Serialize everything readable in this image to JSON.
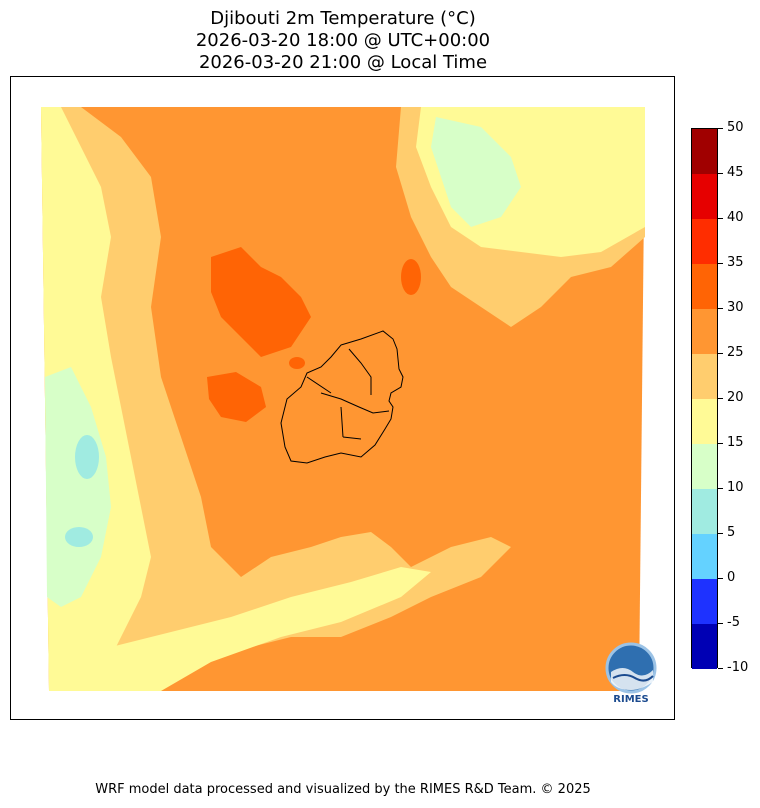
{
  "title": {
    "line1": "Djibouti 2m Temperature (°C)",
    "line2": "2026-03-20 18:00 @ UTC+00:00",
    "line3": "2026-03-20 21:00 @ Local Time"
  },
  "colorbar": {
    "levels": [
      -10,
      -5,
      0,
      5,
      10,
      15,
      20,
      25,
      30,
      35,
      40,
      45,
      50
    ],
    "colors": [
      "#0000b4",
      "#1e32ff",
      "#64d2ff",
      "#a0ebe1",
      "#d7ffc8",
      "#fffa96",
      "#ffcd6e",
      "#ff9632",
      "#ff6405",
      "#ff2d00",
      "#e60000",
      "#a00000"
    ]
  },
  "logo": {
    "text": "RIMES"
  },
  "footer": "WRF model data processed and visualized by the RIMES R&D Team. © 2025"
}
